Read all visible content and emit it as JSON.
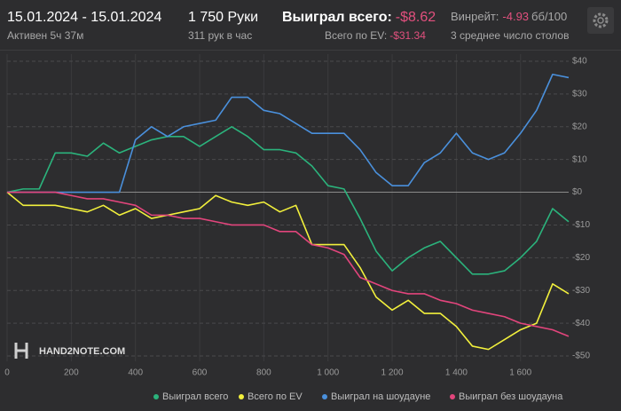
{
  "header": {
    "dates": "15.01.2024 - 15.01.2024",
    "active": "Активен 5ч 37м",
    "hands": "1 750 Руки",
    "rate": "311 рук в час",
    "won_label": "Выиграл всего:",
    "won_value": "-$8.62",
    "ev_label": "Всего по EV:",
    "ev_value": "-$31.34",
    "winrate_label": "Винрейт:",
    "winrate_value": "-4.93",
    "winrate_unit": "бб/100",
    "tables": "3 среднее число столов",
    "logo": "HAND2NOTE.COM"
  },
  "chart_data": {
    "type": "line",
    "x": [
      0,
      50,
      100,
      150,
      200,
      250,
      300,
      350,
      400,
      450,
      500,
      550,
      600,
      650,
      700,
      750,
      800,
      850,
      900,
      950,
      1000,
      1050,
      1100,
      1150,
      1200,
      1250,
      1300,
      1350,
      1400,
      1450,
      1500,
      1550,
      1600,
      1650,
      1700,
      1750
    ],
    "series": [
      {
        "name": "Выиграл всего",
        "color": "#2bb37c",
        "values": [
          0,
          1,
          1,
          12,
          12,
          11,
          15,
          12,
          14,
          16,
          17,
          17,
          14,
          17,
          20,
          17,
          13,
          13,
          12,
          8,
          2,
          1,
          -8,
          -18,
          -24,
          -20,
          -17,
          -15,
          -20,
          -25,
          -25,
          -24,
          -20,
          -15,
          -5,
          -9
        ]
      },
      {
        "name": "Всего по EV",
        "color": "#f2f03c",
        "values": [
          0,
          -4,
          -4,
          -4,
          -5,
          -6,
          -4,
          -7,
          -5,
          -8,
          -7,
          -6,
          -5,
          -1,
          -3,
          -4,
          -3,
          -6,
          -4,
          -16,
          -16,
          -16,
          -23,
          -32,
          -36,
          -33,
          -37,
          -37,
          -41,
          -47,
          -48,
          -45,
          -42,
          -40,
          -28,
          -31
        ]
      },
      {
        "name": "Выиграл на шоудауне",
        "color": "#4a90dc",
        "values": [
          0,
          0,
          0,
          0,
          0,
          0,
          0,
          0,
          16,
          20,
          17,
          20,
          21,
          22,
          29,
          29,
          25,
          24,
          21,
          18,
          18,
          18,
          13,
          6,
          2,
          2,
          9,
          12,
          18,
          12,
          10,
          12,
          18,
          25,
          36,
          35
        ]
      },
      {
        "name": "Выиграл без шоудауна",
        "color": "#e2457c",
        "values": [
          0,
          0,
          0,
          0,
          -1,
          -2,
          -2,
          -3,
          -4,
          -7,
          -7,
          -8,
          -8,
          -9,
          -10,
          -10,
          -10,
          -12,
          -12,
          -16,
          -17,
          -19,
          -26,
          -28,
          -30,
          -31,
          -31,
          -33,
          -34,
          -36,
          -37,
          -38,
          -40,
          -41,
          -42,
          -44
        ]
      }
    ],
    "xlim": [
      0,
      1750
    ],
    "xticks": [
      0,
      200,
      400,
      600,
      800,
      {
        "value": 1000,
        "label": "1 000"
      },
      {
        "value": 1200,
        "label": "1 200"
      },
      {
        "value": 1400,
        "label": "1 400"
      },
      {
        "value": 1600,
        "label": "1 600"
      }
    ],
    "ylim": [
      -50,
      40
    ],
    "yticks": [
      {
        "value": 40,
        "label": "$40"
      },
      {
        "value": 30,
        "label": "$30"
      },
      {
        "value": 20,
        "label": "$20"
      },
      {
        "value": 10,
        "label": "$10"
      },
      {
        "value": 0,
        "label": "$0"
      },
      {
        "value": -10,
        "label": "-$10"
      },
      {
        "value": -20,
        "label": "-$20"
      },
      {
        "value": -30,
        "label": "-$30"
      },
      {
        "value": -40,
        "label": "-$40"
      },
      {
        "value": -50,
        "label": "-$50"
      }
    ],
    "grid": true
  }
}
